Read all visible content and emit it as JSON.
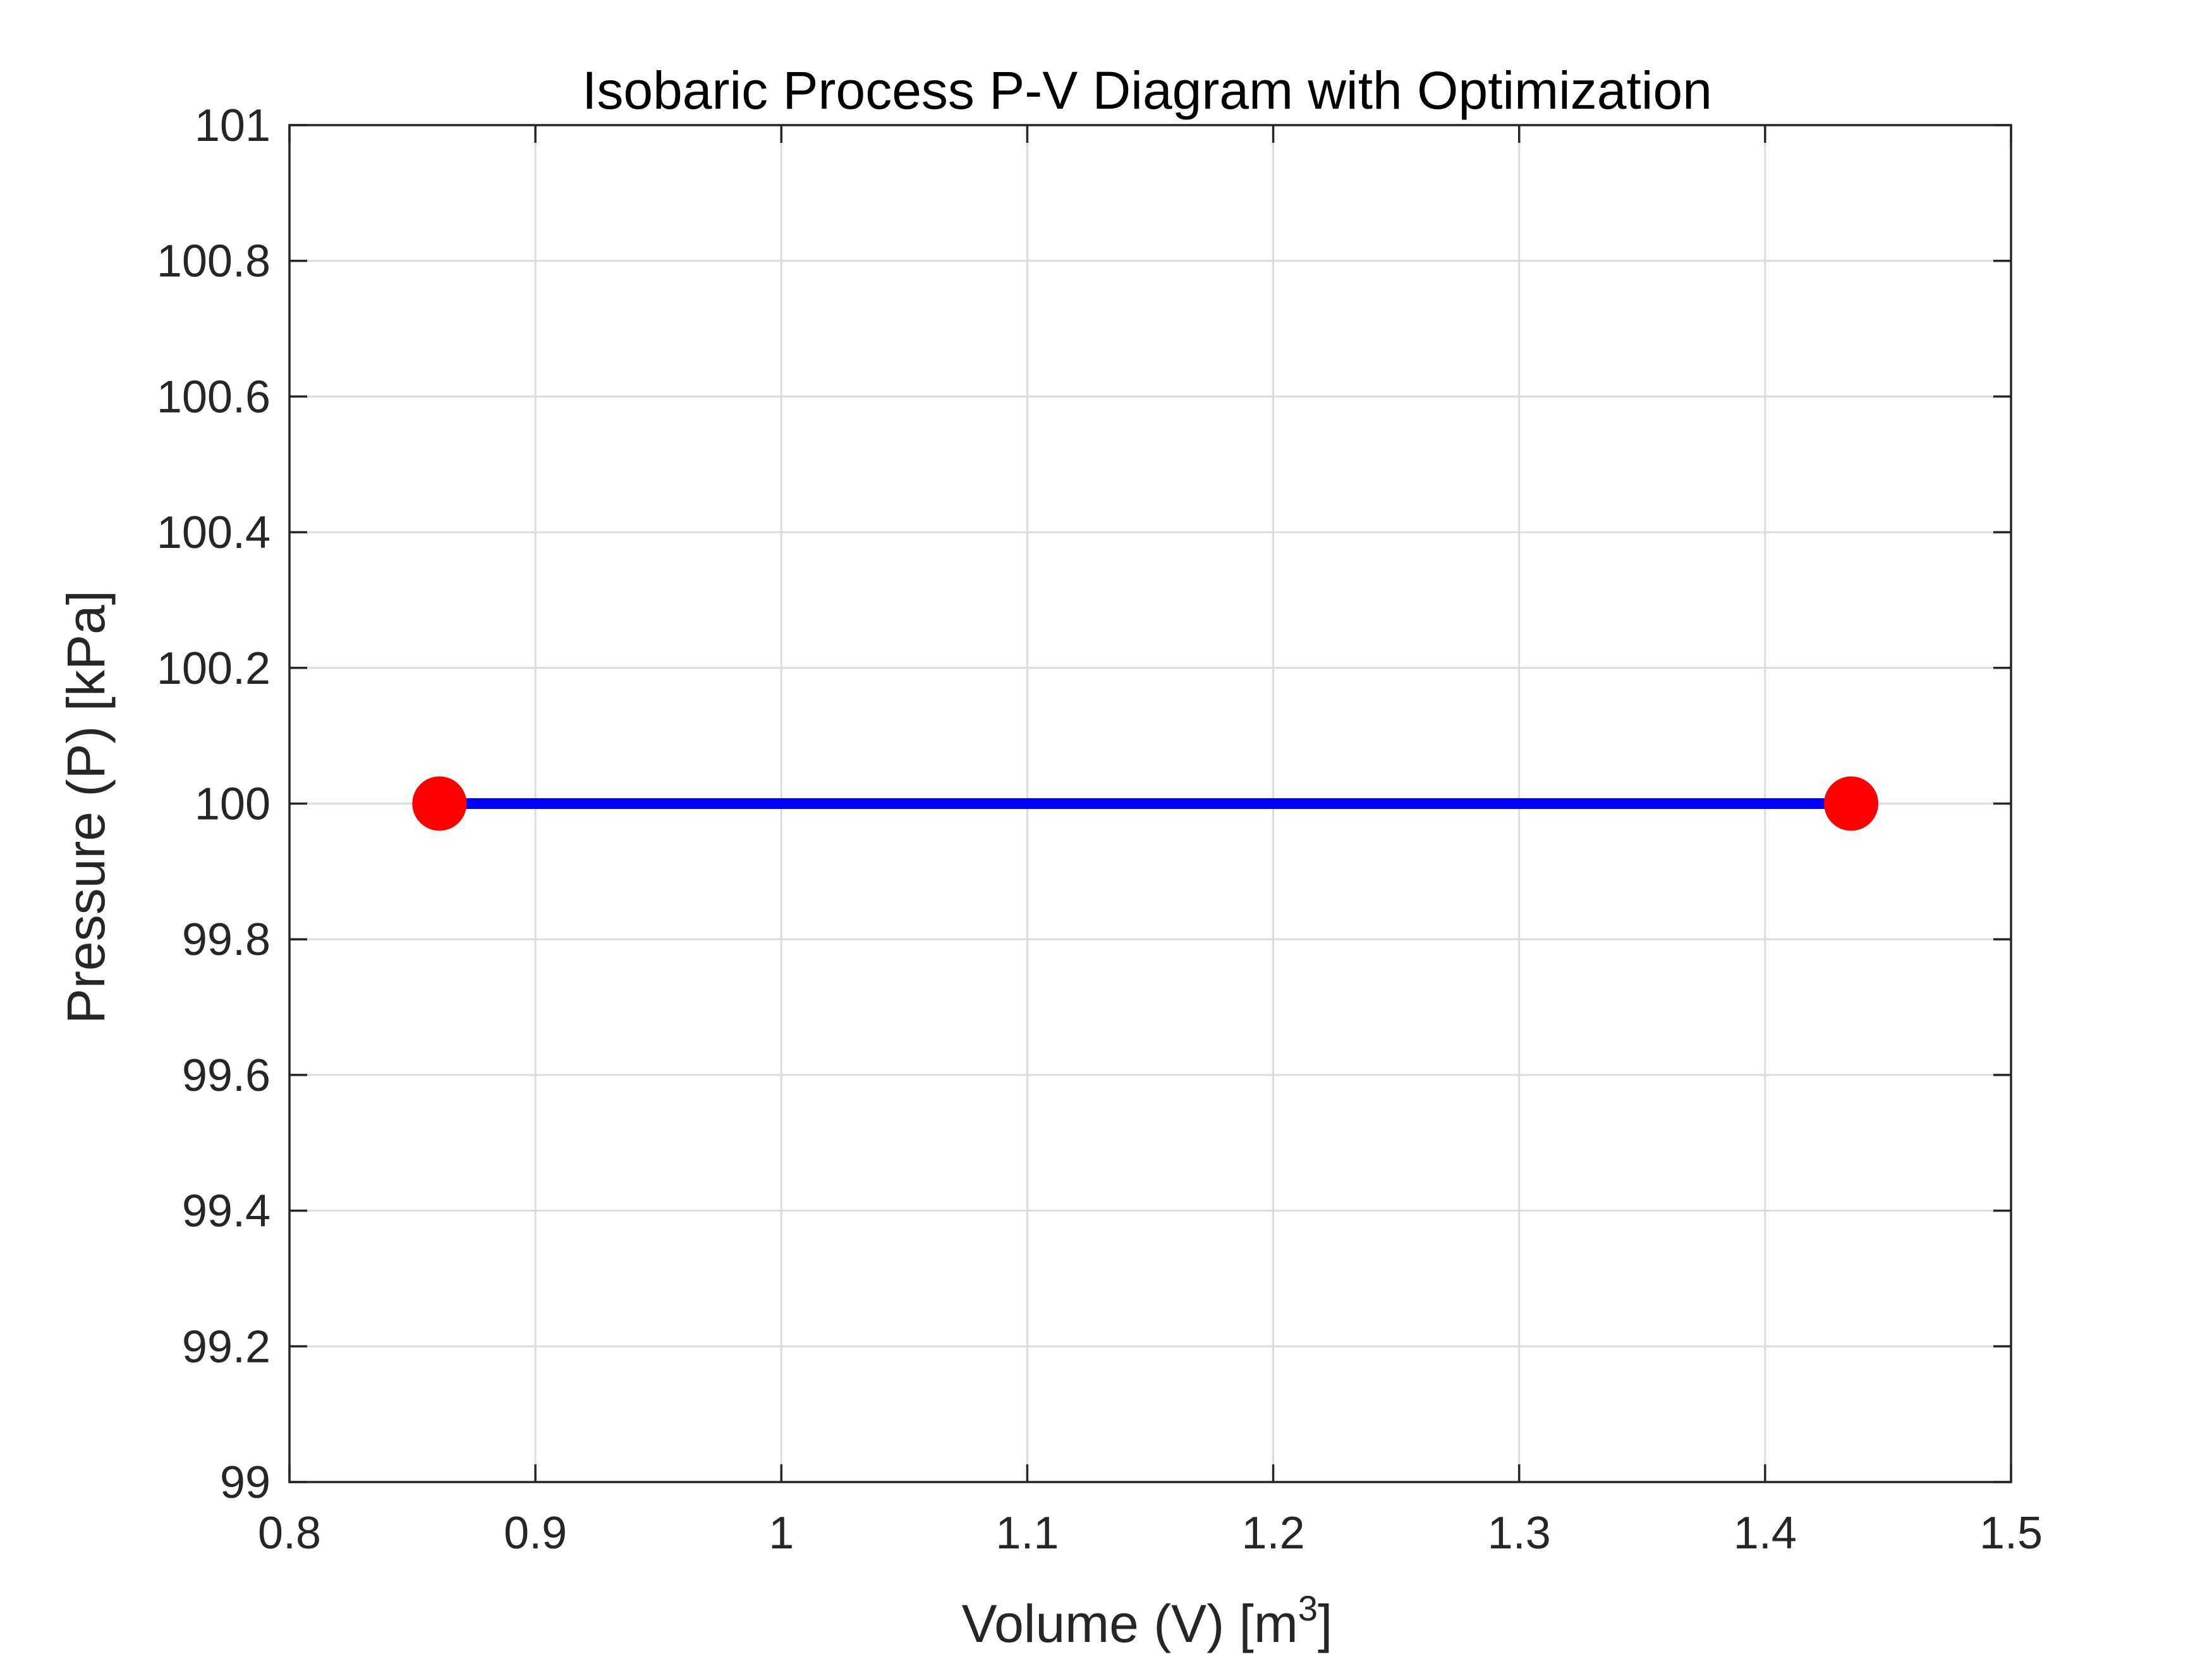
{
  "chart_data": {
    "type": "line",
    "title": "Isobaric Process P-V Diagram with Optimization",
    "xlabel": "Volume (V) [m",
    "xlabel_sup": "3",
    "xlabel_end": "]",
    "ylabel": "Pressure (P) [kPa]",
    "xlim": [
      0.8,
      1.5
    ],
    "ylim": [
      99,
      101
    ],
    "x_ticks": [
      0.8,
      0.9,
      1.0,
      1.1,
      1.2,
      1.3,
      1.4,
      1.5
    ],
    "x_tick_labels": [
      "0.8",
      "0.9",
      "1",
      "1.1",
      "1.2",
      "1.3",
      "1.4",
      "1.5"
    ],
    "y_ticks": [
      99,
      99.2,
      99.4,
      99.6,
      99.8,
      100,
      100.2,
      100.4,
      100.6,
      100.8,
      101
    ],
    "y_tick_labels": [
      "99",
      "99.2",
      "99.4",
      "99.6",
      "99.8",
      "100",
      "100.2",
      "100.4",
      "100.6",
      "100.8",
      "101"
    ],
    "grid": true,
    "series": [
      {
        "type": "line",
        "color": "#0000ff",
        "x": [
          0.861,
          1.435
        ],
        "y": [
          100,
          100
        ]
      },
      {
        "type": "scatter",
        "color": "#ff0000",
        "marker": "circle",
        "x": [
          0.861,
          1.435
        ],
        "y": [
          100,
          100
        ]
      }
    ]
  }
}
